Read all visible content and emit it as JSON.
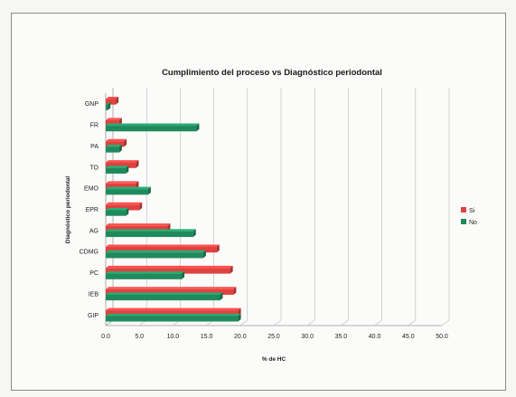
{
  "chart_data": {
    "type": "bar",
    "orientation": "horizontal",
    "title": "Cumplimiento del proceso vs Diagnóstico periodontal",
    "xlabel": "% de HC",
    "ylabel": "Diagnóstico periodontal",
    "categories": [
      "GNP",
      "FR",
      "PA",
      "TO",
      "EMO",
      "EPR",
      "AG",
      "CDMG",
      "PC",
      "IEB",
      "GIP"
    ],
    "series": [
      {
        "name": "Si",
        "color": "#e0413f",
        "values": [
          1.5,
          2.0,
          2.7,
          4.5,
          4.5,
          5.0,
          9.2,
          16.5,
          18.5,
          19.0,
          19.7
        ]
      },
      {
        "name": "No",
        "color": "#1f8a5c",
        "values": [
          0.3,
          13.5,
          2.0,
          3.0,
          6.3,
          3.0,
          13.0,
          14.5,
          11.3,
          17.0,
          19.7
        ]
      }
    ],
    "xlim": [
      0,
      50
    ],
    "xticks": [
      "0.0",
      "5.0",
      "10.0",
      "15.0",
      "20.0",
      "25.0",
      "30.0",
      "35.0",
      "40.0",
      "45.0",
      "50.0"
    ],
    "grid": true,
    "legend": "right"
  }
}
